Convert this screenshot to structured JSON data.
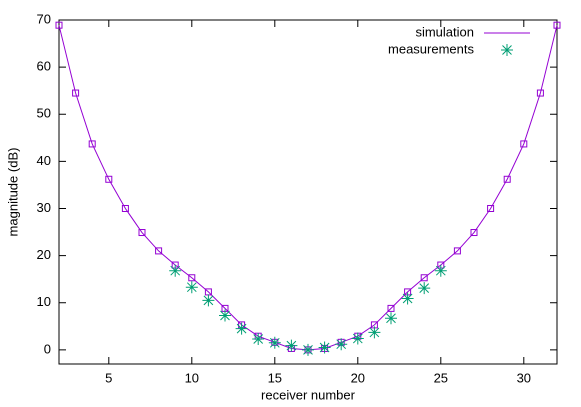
{
  "chart_data": {
    "type": "line",
    "xlabel": "receiver number",
    "ylabel": "magnitude (dB)",
    "xlim": [
      2,
      32
    ],
    "xticks": [
      5,
      10,
      15,
      20,
      25,
      30
    ],
    "ylim": [
      -3,
      70
    ],
    "yticks": [
      0,
      10,
      20,
      30,
      40,
      50,
      60,
      70
    ],
    "legend": "top-right",
    "series": [
      {
        "name": "simulation",
        "color": "#9400d3",
        "line": true,
        "marker": "square",
        "x": [
          2,
          3,
          4,
          5,
          6,
          7,
          8,
          9,
          10,
          11,
          12,
          13,
          14,
          15,
          16,
          17,
          18,
          19,
          20,
          21,
          22,
          23,
          24,
          25,
          26,
          27,
          28,
          29,
          30,
          31,
          32
        ],
        "values": [
          68.9,
          54.5,
          43.7,
          36.2,
          30.0,
          24.9,
          21.0,
          18.0,
          15.3,
          12.3,
          8.8,
          5.3,
          2.9,
          1.6,
          0.3,
          0,
          0.3,
          1.6,
          2.9,
          5.3,
          8.8,
          12.3,
          15.3,
          18.0,
          21.0,
          24.9,
          30.0,
          36.2,
          43.7,
          54.5,
          68.9
        ]
      },
      {
        "name": "measurements",
        "color": "#009e73",
        "line": false,
        "marker": "star",
        "x": [
          9,
          10,
          11,
          12,
          13,
          14,
          15,
          16,
          17,
          18,
          19,
          20,
          21,
          22,
          23,
          24,
          25
        ],
        "values": [
          16.8,
          13.3,
          10.5,
          7.3,
          4.5,
          2.3,
          1.5,
          0.9,
          0,
          0.5,
          1.2,
          2.4,
          3.7,
          6.7,
          10.9,
          13.1,
          16.8
        ]
      }
    ]
  }
}
